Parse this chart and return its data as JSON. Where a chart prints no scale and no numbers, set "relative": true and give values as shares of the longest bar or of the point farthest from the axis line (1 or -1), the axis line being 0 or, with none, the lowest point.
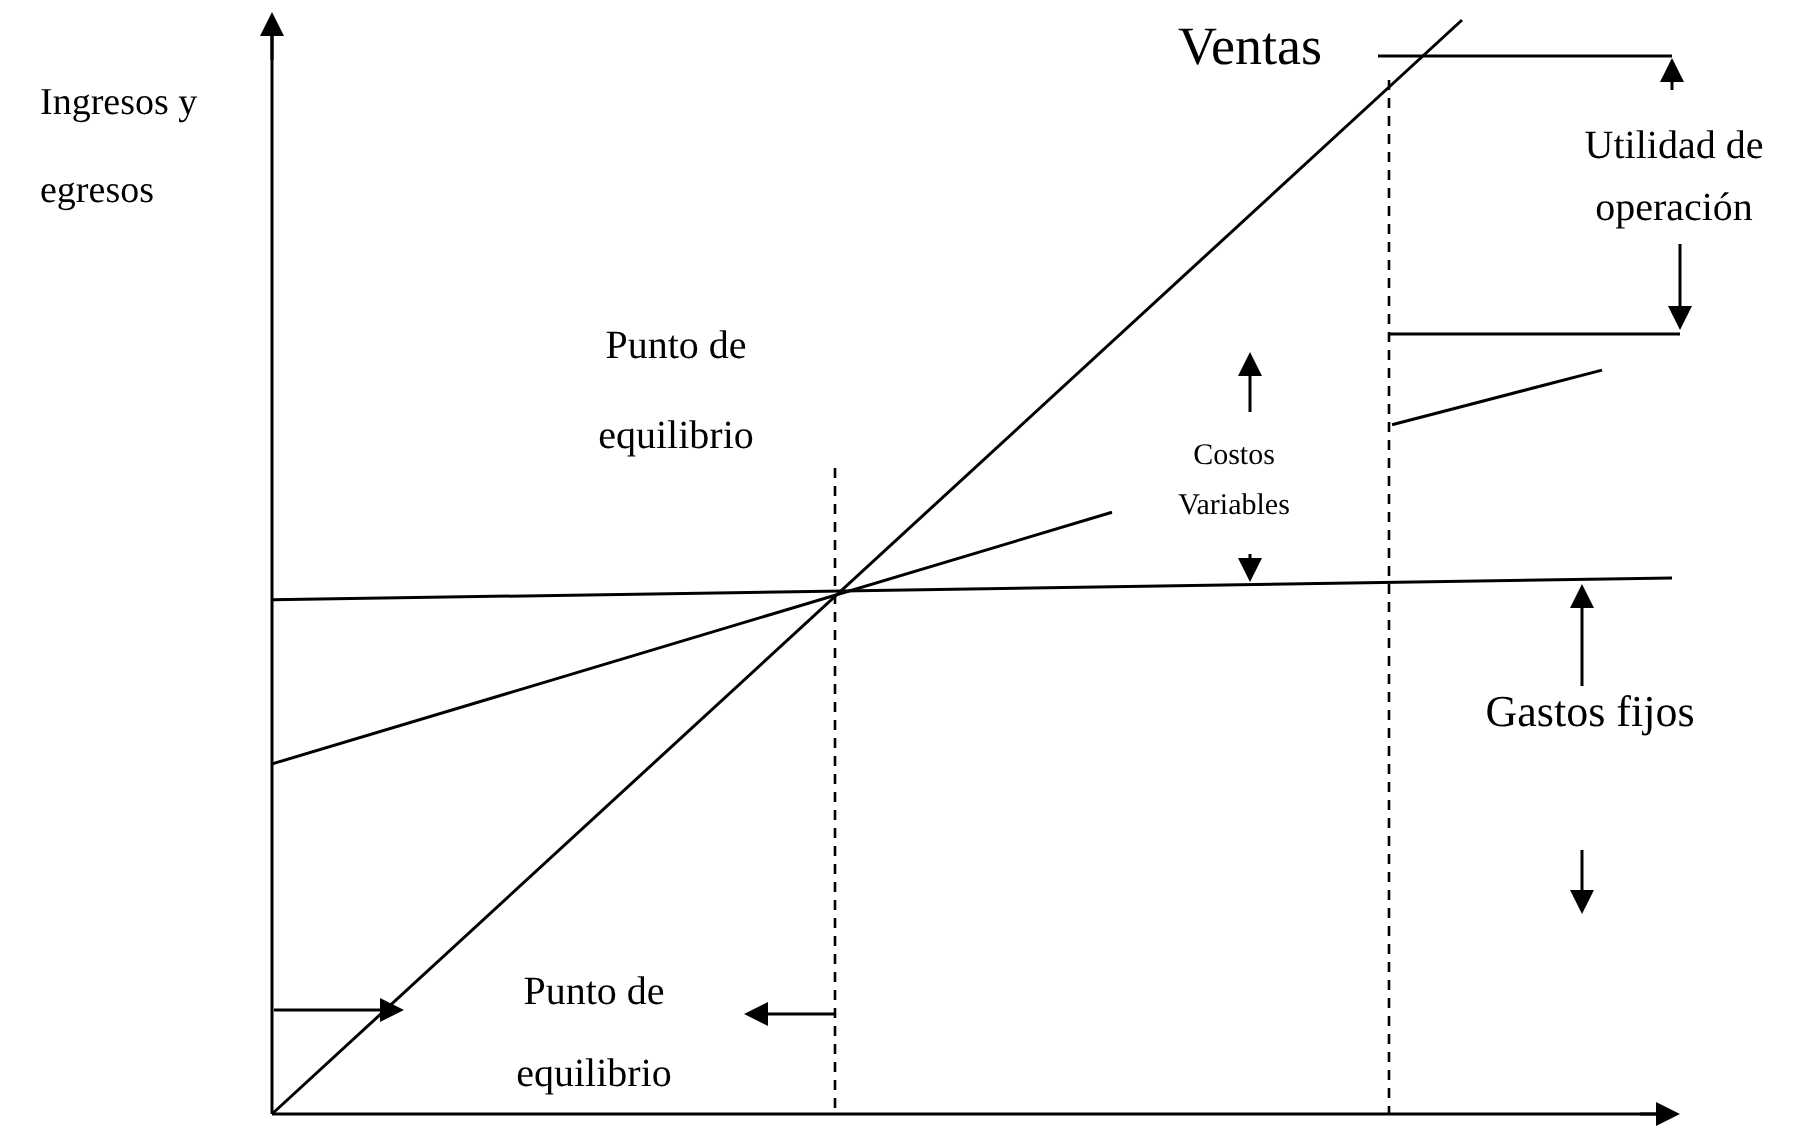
{
  "chart_data": {
    "type": "line",
    "relative": true,
    "ylabel": "Ingresos y egresos",
    "categories": [
      null,
      null,
      null,
      null,
      null,
      null,
      null,
      null,
      null,
      null,
      null,
      null,
      null,
      null,
      null,
      null,
      null,
      null,
      null,
      null,
      null,
      null,
      null,
      null,
      null,
      null,
      null,
      null,
      null,
      null,
      null,
      null,
      null,
      null,
      null,
      null,
      null,
      null,
      null,
      null,
      null
    ],
    "series": [
      {
        "name": "Ventas",
        "color": "#000000",
        "values": [
          0,
          null,
          null,
          null,
          null,
          null,
          null,
          null,
          null,
          null,
          null,
          null,
          null,
          null,
          null,
          null,
          null,
          null,
          null,
          null,
          null,
          null,
          null,
          null,
          null,
          null,
          null,
          null,
          null,
          null,
          null,
          null,
          null,
          null,
          1.0,
          null,
          null,
          null,
          null,
          null,
          null
        ]
      },
      {
        "color": "#000000",
        "values": [
          0.32,
          null,
          null,
          null,
          null,
          null,
          null,
          null,
          null,
          null,
          null,
          null,
          null,
          null,
          null,
          null,
          null,
          null,
          null,
          null,
          null,
          null,
          null,
          null,
          0.55,
          null,
          null,
          null,
          null,
          null,
          null,
          null,
          null,
          null,
          null,
          null,
          null,
          null,
          null,
          null,
          null
        ]
      },
      {
        "color": "#000000",
        "values": [
          null,
          null,
          null,
          null,
          null,
          null,
          null,
          null,
          null,
          null,
          null,
          null,
          null,
          null,
          null,
          null,
          null,
          null,
          null,
          null,
          null,
          null,
          null,
          null,
          null,
          null,
          null,
          null,
          null,
          null,
          null,
          null,
          0.63,
          null,
          null,
          null,
          null,
          null,
          0.68,
          null,
          null
        ]
      },
      {
        "color": "#000000",
        "values": [
          0.47,
          null,
          null,
          null,
          null,
          null,
          null,
          null,
          null,
          null,
          null,
          null,
          null,
          null,
          null,
          null,
          null,
          null,
          null,
          null,
          null,
          null,
          null,
          null,
          null,
          null,
          null,
          null,
          null,
          null,
          null,
          null,
          null,
          null,
          null,
          null,
          null,
          null,
          null,
          null,
          0.49
        ]
      }
    ],
    "annotations": [
      "Punto de equilibrio",
      "Costos Variables",
      "Utilidad de operación",
      "Gastos fijos",
      "Punto de equilibrio"
    ],
    "legend": false
  }
}
